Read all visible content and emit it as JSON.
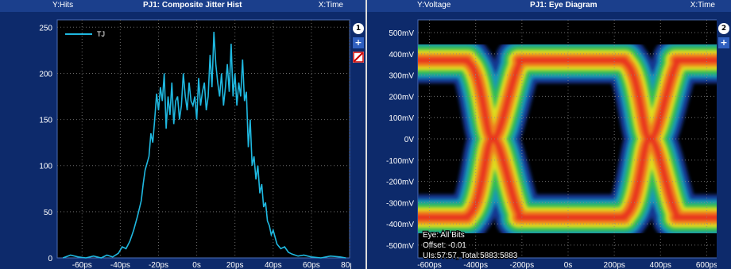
{
  "left_panel": {
    "ylabel": "Y:Hits",
    "title": "PJ1: Composite Jitter Hist",
    "xlabel": "X:Time",
    "badge": "1",
    "plus": "+",
    "legend": "TJ"
  },
  "right_panel": {
    "ylabel": "Y:Voltage",
    "title": "PJ1: Eye Diagram",
    "xlabel": "X:Time",
    "badge": "2",
    "plus": "+",
    "info": [
      "Eye: All Bits",
      "Offset: -0.01",
      "UIs:57:57, Total:5883:5883"
    ]
  },
  "colors": {
    "trace": "#1fb8e0",
    "panel": "#0d2a6b",
    "plot_bg": "#000000"
  },
  "chart_data": [
    {
      "type": "line",
      "title": "PJ1: Composite Jitter Hist",
      "xlabel": "X:Time",
      "ylabel": "Y:Hits",
      "series": [
        {
          "name": "TJ"
        }
      ],
      "x_ticks": [
        "-60ps",
        "-40ps",
        "-20ps",
        "0s",
        "20ps",
        "40ps",
        "60ps",
        "80ps"
      ],
      "y_ticks": [
        "0",
        "50",
        "100",
        "150",
        "200",
        "250"
      ],
      "xlim": [
        -73,
        80
      ],
      "ylim": [
        0,
        258
      ],
      "points": [
        [
          -70,
          0
        ],
        [
          -66,
          3
        ],
        [
          -62,
          1
        ],
        [
          -58,
          0
        ],
        [
          -54,
          2
        ],
        [
          -50,
          0
        ],
        [
          -47,
          3
        ],
        [
          -44,
          1
        ],
        [
          -41,
          5
        ],
        [
          -39,
          12
        ],
        [
          -37,
          10
        ],
        [
          -35,
          18
        ],
        [
          -33,
          30
        ],
        [
          -31,
          45
        ],
        [
          -29,
          62
        ],
        [
          -28,
          80
        ],
        [
          -27,
          95
        ],
        [
          -25,
          110
        ],
        [
          -24,
          135
        ],
        [
          -23,
          125
        ],
        [
          -22,
          150
        ],
        [
          -21,
          178
        ],
        [
          -20,
          160
        ],
        [
          -19,
          185
        ],
        [
          -18,
          170
        ],
        [
          -17,
          200
        ],
        [
          -16,
          140
        ],
        [
          -15,
          175
        ],
        [
          -14,
          155
        ],
        [
          -13,
          190
        ],
        [
          -12,
          145
        ],
        [
          -11,
          170
        ],
        [
          -10,
          175
        ],
        [
          -9,
          150
        ],
        [
          -8,
          165
        ],
        [
          -7,
          200
        ],
        [
          -6,
          175
        ],
        [
          -5,
          160
        ],
        [
          -4,
          190
        ],
        [
          -3,
          170
        ],
        [
          -2,
          165
        ],
        [
          -1,
          175
        ],
        [
          0,
          150
        ],
        [
          1,
          195
        ],
        [
          2,
          165
        ],
        [
          3,
          180
        ],
        [
          4,
          190
        ],
        [
          5,
          160
        ],
        [
          6,
          175
        ],
        [
          7,
          220
        ],
        [
          8,
          185
        ],
        [
          9,
          245
        ],
        [
          10,
          210
        ],
        [
          11,
          190
        ],
        [
          12,
          175
        ],
        [
          13,
          200
        ],
        [
          14,
          165
        ],
        [
          15,
          185
        ],
        [
          16,
          210
        ],
        [
          17,
          180
        ],
        [
          18,
          232
        ],
        [
          19,
          175
        ],
        [
          20,
          200
        ],
        [
          21,
          165
        ],
        [
          22,
          190
        ],
        [
          23,
          175
        ],
        [
          24,
          215
        ],
        [
          25,
          170
        ],
        [
          26,
          180
        ],
        [
          27,
          120
        ],
        [
          28,
          150
        ],
        [
          29,
          100
        ],
        [
          30,
          110
        ],
        [
          31,
          85
        ],
        [
          32,
          100
        ],
        [
          33,
          70
        ],
        [
          34,
          80
        ],
        [
          35,
          55
        ],
        [
          36,
          60
        ],
        [
          37,
          40
        ],
        [
          38,
          35
        ],
        [
          39,
          25
        ],
        [
          40,
          30
        ],
        [
          42,
          15
        ],
        [
          44,
          10
        ],
        [
          46,
          12
        ],
        [
          48,
          6
        ],
        [
          50,
          4
        ],
        [
          53,
          2
        ],
        [
          56,
          3
        ],
        [
          60,
          1
        ],
        [
          65,
          0
        ],
        [
          70,
          2
        ],
        [
          75,
          1
        ],
        [
          78,
          0
        ]
      ]
    },
    {
      "type": "heatmap",
      "title": "PJ1: Eye Diagram",
      "xlabel": "X:Time",
      "ylabel": "Y:Voltage",
      "x_ticks": [
        "-600ps",
        "-400ps",
        "-200ps",
        "0s",
        "200ps",
        "400ps",
        "600ps"
      ],
      "y_ticks": [
        "500mV",
        "400mV",
        "300mV",
        "200mV",
        "100mV",
        "0V",
        "-100mV",
        "-200mV",
        "-300mV",
        "-400mV",
        "-500mV"
      ],
      "xlim": [
        -650,
        650
      ],
      "ylim": [
        -560,
        560
      ],
      "high_level_mV": 370,
      "low_level_mV": -370,
      "crossings_ps": [
        -325,
        355
      ]
    }
  ]
}
